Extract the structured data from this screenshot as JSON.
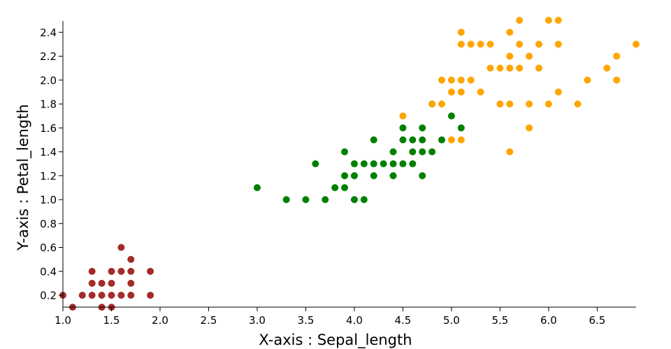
{
  "chart_data": {
    "type": "scatter",
    "title": "",
    "xlabel": "X-axis : Sepal_length",
    "ylabel": "Y-axis : Petal_length",
    "xlim": [
      1.0,
      6.9
    ],
    "ylim": [
      0.1,
      2.5
    ],
    "x_ticks": [
      "1.0",
      "1.5",
      "2.0",
      "2.5",
      "3.0",
      "3.5",
      "4.0",
      "4.5",
      "5.0",
      "5.5",
      "6.0",
      "6.5"
    ],
    "y_ticks": [
      "0.2",
      "0.4",
      "0.6",
      "0.8",
      "1.0",
      "1.2",
      "1.4",
      "1.6",
      "1.8",
      "2.0",
      "2.2",
      "2.4"
    ],
    "grid": false,
    "legend": "none",
    "series": [
      {
        "color": "#a52a2a",
        "points": [
          [
            1.0,
            0.2
          ],
          [
            1.1,
            0.1
          ],
          [
            1.2,
            0.2
          ],
          [
            1.3,
            0.2
          ],
          [
            1.3,
            0.3
          ],
          [
            1.3,
            0.4
          ],
          [
            1.4,
            0.1
          ],
          [
            1.4,
            0.2
          ],
          [
            1.4,
            0.3
          ],
          [
            1.5,
            0.1
          ],
          [
            1.5,
            0.2
          ],
          [
            1.5,
            0.3
          ],
          [
            1.5,
            0.4
          ],
          [
            1.6,
            0.2
          ],
          [
            1.6,
            0.4
          ],
          [
            1.6,
            0.6
          ],
          [
            1.7,
            0.2
          ],
          [
            1.7,
            0.3
          ],
          [
            1.7,
            0.4
          ],
          [
            1.7,
            0.5
          ],
          [
            1.9,
            0.2
          ],
          [
            1.9,
            0.4
          ]
        ]
      },
      {
        "color": "#008000",
        "points": [
          [
            3.0,
            1.1
          ],
          [
            3.3,
            1.0
          ],
          [
            3.5,
            1.0
          ],
          [
            3.6,
            1.3
          ],
          [
            3.7,
            1.0
          ],
          [
            3.8,
            1.1
          ],
          [
            3.9,
            1.1
          ],
          [
            3.9,
            1.2
          ],
          [
            3.9,
            1.4
          ],
          [
            4.0,
            1.0
          ],
          [
            4.0,
            1.2
          ],
          [
            4.0,
            1.3
          ],
          [
            4.1,
            1.0
          ],
          [
            4.1,
            1.3
          ],
          [
            4.2,
            1.2
          ],
          [
            4.2,
            1.3
          ],
          [
            4.2,
            1.5
          ],
          [
            4.3,
            1.3
          ],
          [
            4.4,
            1.2
          ],
          [
            4.4,
            1.3
          ],
          [
            4.4,
            1.4
          ],
          [
            4.5,
            1.3
          ],
          [
            4.5,
            1.5
          ],
          [
            4.5,
            1.6
          ],
          [
            4.6,
            1.3
          ],
          [
            4.6,
            1.4
          ],
          [
            4.6,
            1.5
          ],
          [
            4.7,
            1.2
          ],
          [
            4.7,
            1.4
          ],
          [
            4.7,
            1.5
          ],
          [
            4.7,
            1.6
          ],
          [
            4.8,
            1.4
          ],
          [
            4.8,
            1.8
          ],
          [
            4.9,
            1.5
          ],
          [
            5.0,
            1.7
          ],
          [
            5.1,
            1.6
          ]
        ]
      },
      {
        "color": "#ffa500",
        "points": [
          [
            4.5,
            1.7
          ],
          [
            4.8,
            1.8
          ],
          [
            4.9,
            1.8
          ],
          [
            4.9,
            2.0
          ],
          [
            5.0,
            1.5
          ],
          [
            5.0,
            1.9
          ],
          [
            5.0,
            2.0
          ],
          [
            5.1,
            1.5
          ],
          [
            5.1,
            1.9
          ],
          [
            5.1,
            2.0
          ],
          [
            5.1,
            2.3
          ],
          [
            5.1,
            2.4
          ],
          [
            5.2,
            2.0
          ],
          [
            5.2,
            2.3
          ],
          [
            5.3,
            1.9
          ],
          [
            5.3,
            2.3
          ],
          [
            5.4,
            2.1
          ],
          [
            5.4,
            2.3
          ],
          [
            5.5,
            1.8
          ],
          [
            5.5,
            2.1
          ],
          [
            5.6,
            1.4
          ],
          [
            5.6,
            1.8
          ],
          [
            5.6,
            2.1
          ],
          [
            5.6,
            2.2
          ],
          [
            5.6,
            2.4
          ],
          [
            5.7,
            2.1
          ],
          [
            5.7,
            2.3
          ],
          [
            5.7,
            2.5
          ],
          [
            5.8,
            1.6
          ],
          [
            5.8,
            1.8
          ],
          [
            5.8,
            2.2
          ],
          [
            5.9,
            2.1
          ],
          [
            5.9,
            2.3
          ],
          [
            6.0,
            1.8
          ],
          [
            6.0,
            2.5
          ],
          [
            6.1,
            1.9
          ],
          [
            6.1,
            2.3
          ],
          [
            6.1,
            2.5
          ],
          [
            6.3,
            1.8
          ],
          [
            6.4,
            2.0
          ],
          [
            6.6,
            2.1
          ],
          [
            6.7,
            2.0
          ],
          [
            6.7,
            2.2
          ],
          [
            6.9,
            2.3
          ]
        ]
      }
    ]
  }
}
